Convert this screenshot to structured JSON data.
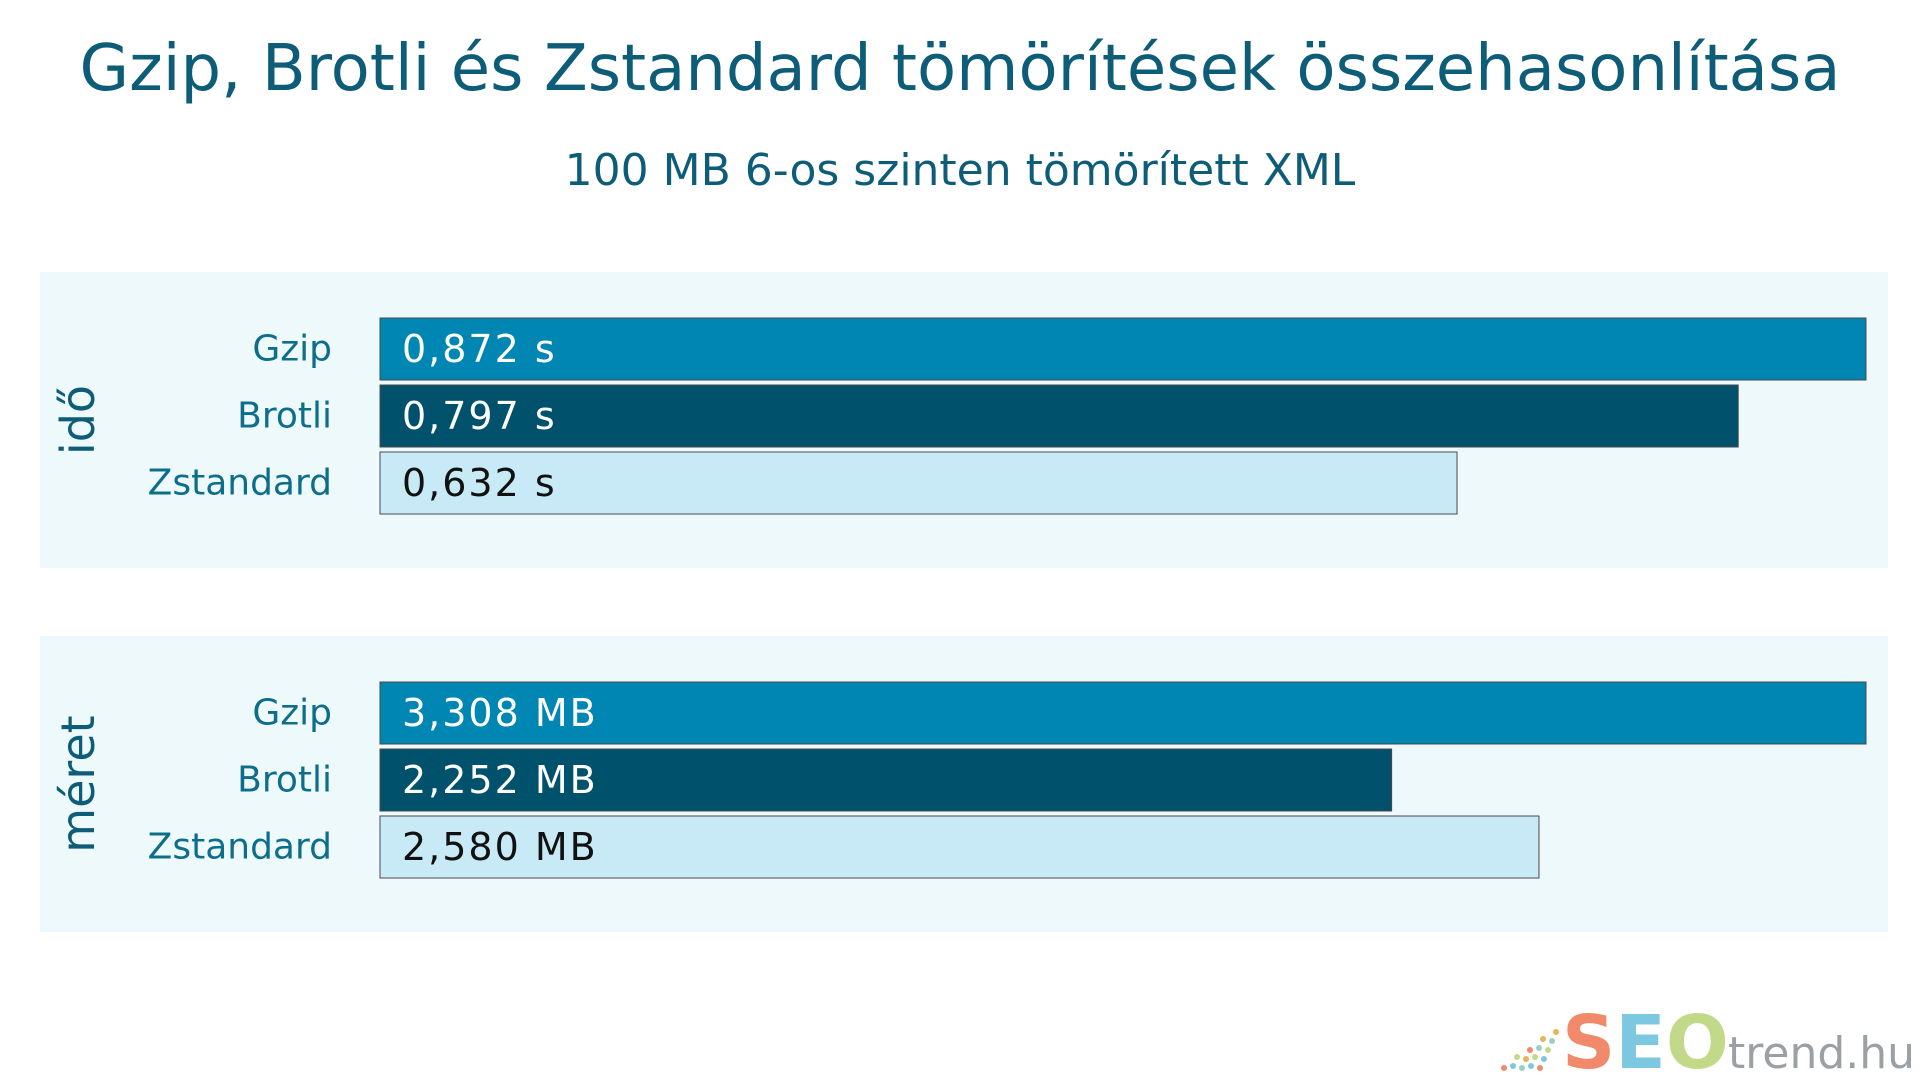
{
  "chart_data": {
    "type": "bar",
    "orientation": "horizontal",
    "title": "Gzip, Brotli és Zstandard tömörítések összehasonlítása",
    "subtitle": "100 MB 6-os szinten tömörített XML",
    "categories": [
      "Gzip",
      "Brotli",
      "Zstandard"
    ],
    "category_colors": [
      "#0086b3",
      "#00516b",
      "#c8eaf7"
    ],
    "label_colors": [
      "#ffffff",
      "#ffffff",
      "#111111"
    ],
    "panels": [
      {
        "name": "idő",
        "values": [
          0.872,
          0.797,
          0.632
        ],
        "labels": [
          "0,872 s",
          "0,797 s",
          "0,632 s"
        ]
      },
      {
        "name": "méret",
        "values": [
          3.308,
          2.252,
          2.58
        ],
        "labels": [
          "3,308 MB",
          "2,252 MB",
          "2,580 MB"
        ]
      }
    ],
    "grid": false,
    "legend": "none"
  },
  "logo": {
    "text_seo": "SEO",
    "text_trend": "trend.hu"
  },
  "colors": {
    "title": "#0d5c78",
    "panel_bg": "#eef9fc",
    "category_label": "#0d6e8c",
    "logo_s": "#f08a6a",
    "logo_e": "#7cc8e0",
    "logo_o": "#c3d98a",
    "logo_trend": "#9aa0a4"
  }
}
